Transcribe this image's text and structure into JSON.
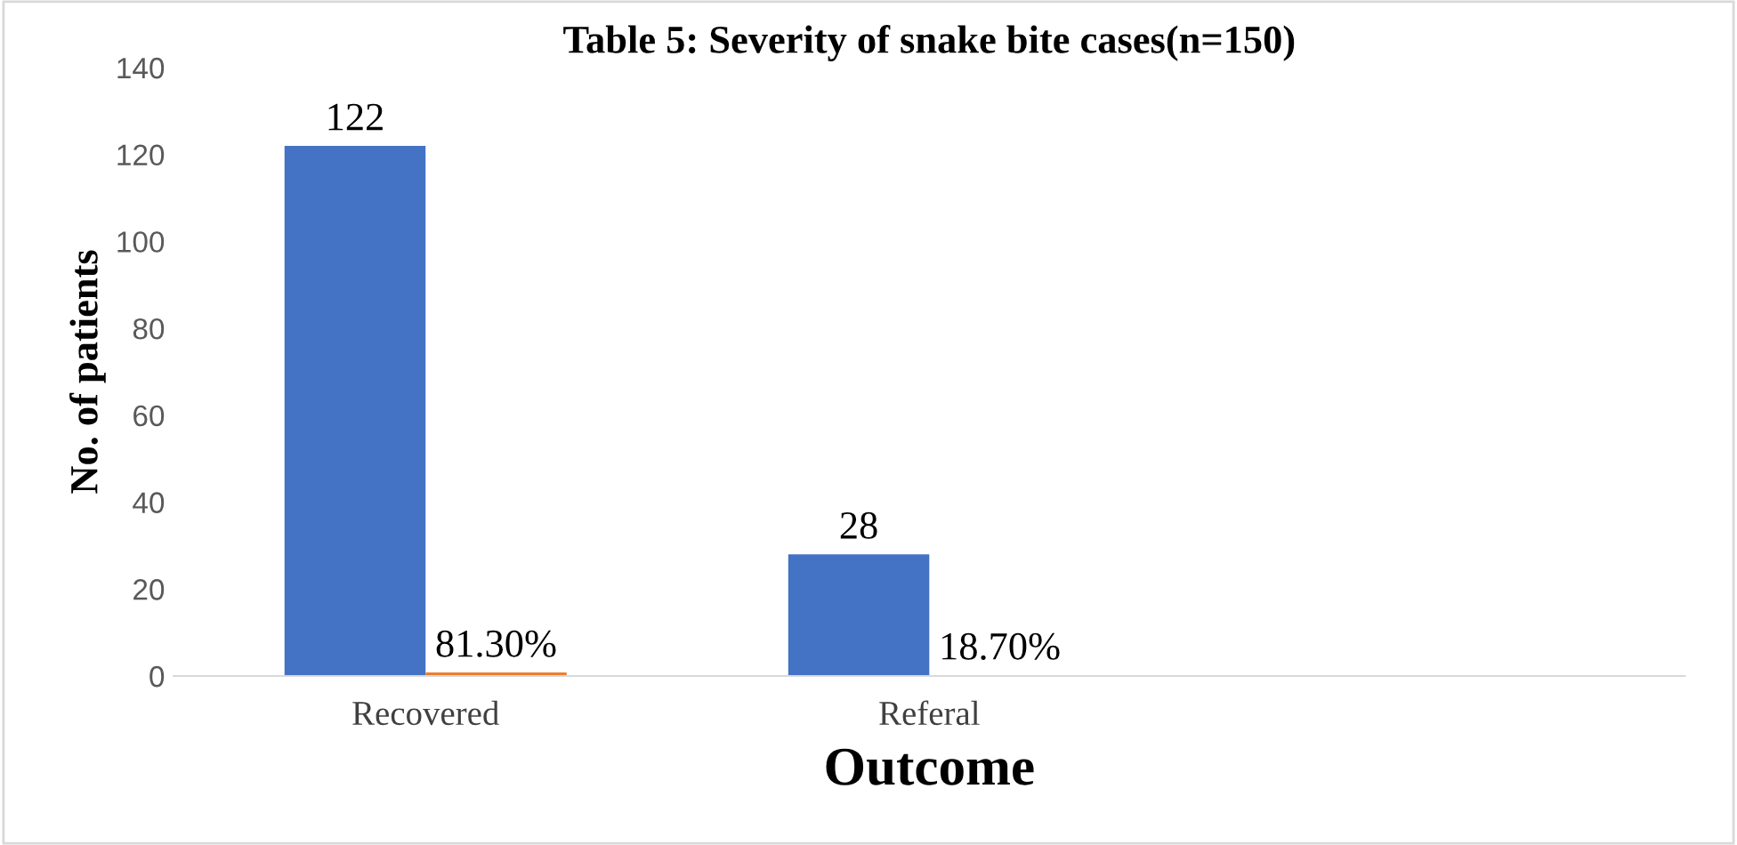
{
  "chart_data": {
    "type": "bar",
    "title": "Table 5: Severity of snake bite cases(n=150)",
    "xlabel": "Outcome",
    "ylabel": "No. of patients",
    "categories": [
      "Recovered",
      "Referal",
      null
    ],
    "series": [
      {
        "color": "#4472c4",
        "values": [
          122,
          28,
          null
        ],
        "value_labels": [
          "122",
          "28",
          null
        ]
      },
      {
        "color": "#ed7d31",
        "values": [
          0.813,
          0.187,
          null
        ],
        "value_labels": [
          "81.30%",
          "18.70%",
          null
        ]
      }
    ],
    "ylim": [
      0,
      140
    ],
    "yticks": [
      0,
      20,
      40,
      60,
      80,
      100,
      120,
      140
    ],
    "grid": false,
    "legend": false
  }
}
